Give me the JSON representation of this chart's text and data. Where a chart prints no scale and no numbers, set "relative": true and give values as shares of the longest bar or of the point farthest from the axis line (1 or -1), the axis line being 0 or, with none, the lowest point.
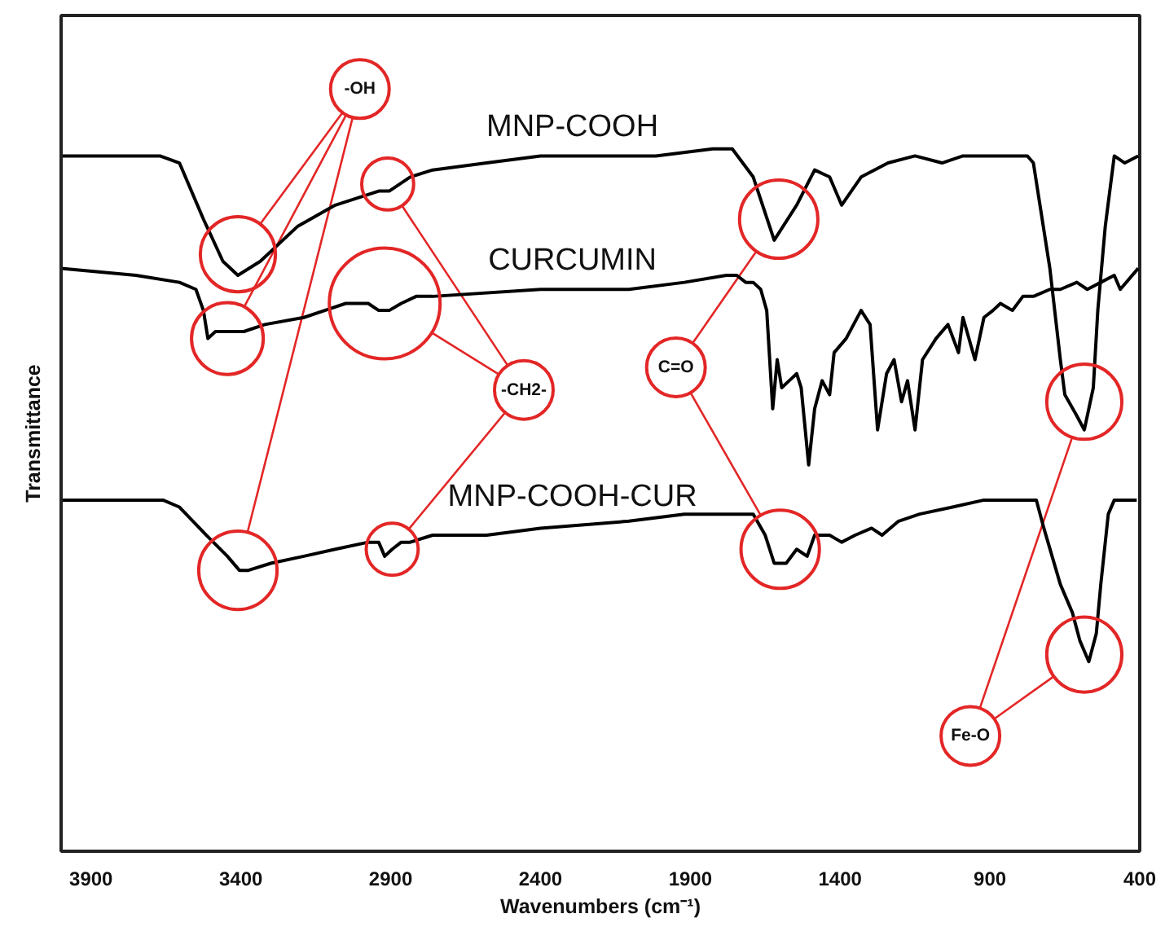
{
  "chart_data": {
    "type": "line",
    "relative": true,
    "xlabel": "Wavenumbers (cm⁻¹)",
    "ylabel": "Transmittance",
    "xlim": [
      4000,
      400
    ],
    "xticks": [
      3900,
      3400,
      2900,
      2400,
      1900,
      1400,
      900,
      400
    ],
    "series": [
      {
        "name": "MNP-COOH",
        "color": "#000000",
        "x": [
          4000,
          3670,
          3605,
          3525,
          3460,
          3410,
          3335,
          3210,
          3085,
          2940,
          2905,
          2835,
          2760,
          2580,
          2400,
          2255,
          2015,
          1825,
          1760,
          1690,
          1620,
          1545,
          1485,
          1435,
          1395,
          1330,
          1240,
          1150,
          1060,
          990,
          775,
          755,
          700,
          665,
          650,
          610,
          585,
          555,
          540,
          515,
          485,
          450,
          405
        ],
        "values": [
          0.99,
          0.99,
          0.98,
          0.9,
          0.84,
          0.82,
          0.84,
          0.89,
          0.92,
          0.94,
          0.94,
          0.96,
          0.97,
          0.98,
          0.99,
          0.99,
          0.99,
          1.0,
          1.0,
          0.96,
          0.87,
          0.92,
          0.97,
          0.96,
          0.92,
          0.96,
          0.98,
          0.99,
          0.98,
          0.99,
          0.99,
          0.98,
          0.83,
          0.7,
          0.65,
          0.62,
          0.6,
          0.66,
          0.77,
          0.89,
          0.99,
          0.98,
          0.99
        ]
      },
      {
        "name": "CURCUMIN",
        "color": "#000000",
        "x": [
          4000,
          3750,
          3605,
          3550,
          3525,
          3510,
          3485,
          3445,
          3390,
          3320,
          3190,
          3120,
          3050,
          2975,
          2940,
          2905,
          2865,
          2815,
          2760,
          2400,
          2105,
          1920,
          1780,
          1745,
          1715,
          1690,
          1665,
          1645,
          1625,
          1610,
          1595,
          1570,
          1545,
          1530,
          1505,
          1485,
          1460,
          1435,
          1420,
          1380,
          1330,
          1300,
          1275,
          1245,
          1220,
          1195,
          1175,
          1150,
          1125,
          1080,
          1040,
          1005,
          990,
          950,
          920,
          890,
          865,
          825,
          790,
          755,
          700,
          665,
          610,
          575,
          530,
          485,
          465,
          405
        ],
        "values": [
          0.83,
          0.82,
          0.81,
          0.8,
          0.77,
          0.73,
          0.74,
          0.74,
          0.74,
          0.75,
          0.76,
          0.77,
          0.78,
          0.78,
          0.77,
          0.77,
          0.78,
          0.79,
          0.79,
          0.8,
          0.8,
          0.81,
          0.82,
          0.82,
          0.81,
          0.81,
          0.8,
          0.77,
          0.63,
          0.7,
          0.66,
          0.67,
          0.68,
          0.66,
          0.55,
          0.63,
          0.67,
          0.65,
          0.71,
          0.73,
          0.77,
          0.75,
          0.6,
          0.68,
          0.7,
          0.64,
          0.67,
          0.6,
          0.7,
          0.73,
          0.75,
          0.71,
          0.76,
          0.7,
          0.76,
          0.77,
          0.78,
          0.77,
          0.79,
          0.79,
          0.8,
          0.8,
          0.81,
          0.8,
          0.81,
          0.82,
          0.8,
          0.83
        ]
      },
      {
        "name": "MNP-COOH-CUR",
        "color": "#000000",
        "x": [
          4000,
          3750,
          3660,
          3605,
          3515,
          3445,
          3405,
          3375,
          3300,
          3190,
          3085,
          2975,
          2940,
          2920,
          2895,
          2865,
          2835,
          2760,
          2580,
          2400,
          2105,
          1920,
          1780,
          1690,
          1650,
          1620,
          1580,
          1545,
          1510,
          1485,
          1435,
          1395,
          1350,
          1295,
          1260,
          1205,
          1135,
          1025,
          920,
          845,
          775,
          745,
          720,
          665,
          625,
          600,
          570,
          545,
          530,
          505,
          485,
          450,
          410
        ],
        "values": [
          0.5,
          0.5,
          0.5,
          0.49,
          0.45,
          0.42,
          0.4,
          0.4,
          0.41,
          0.42,
          0.43,
          0.44,
          0.44,
          0.42,
          0.43,
          0.44,
          0.44,
          0.45,
          0.45,
          0.46,
          0.47,
          0.48,
          0.48,
          0.48,
          0.45,
          0.41,
          0.41,
          0.43,
          0.42,
          0.45,
          0.45,
          0.44,
          0.45,
          0.46,
          0.45,
          0.47,
          0.48,
          0.49,
          0.5,
          0.5,
          0.5,
          0.5,
          0.46,
          0.38,
          0.34,
          0.3,
          0.27,
          0.31,
          0.38,
          0.48,
          0.5,
          0.5,
          0.5
        ]
      },
      {
        "type": "bubble",
        "color": "#e32626",
        "x": [
          3410,
          3445,
          3410
        ],
        "values": [
          0.85,
          0.73,
          0.4
        ],
        "sizes": [
          0.46,
          0.42,
          0.5
        ]
      },
      {
        "type": "bubble",
        "color": "#e32626",
        "x": [
          2910,
          2920,
          2895
        ],
        "values": [
          0.95,
          0.78,
          0.43
        ],
        "sizes": [
          0.22,
          1,
          0.22
        ]
      },
      {
        "type": "bubble",
        "color": "#e32626",
        "x": [
          1605,
          1600
        ],
        "values": [
          0.9,
          0.43
        ],
        "sizes": [
          0.5,
          0.5
        ]
      },
      {
        "type": "bubble",
        "color": "#e32626",
        "x": [
          585,
          585
        ],
        "values": [
          0.64,
          0.28
        ],
        "sizes": [
          0.46,
          0.46
        ]
      }
    ],
    "annotations": [
      "-OH",
      "-CH2-",
      "C=O",
      "Fe-O"
    ]
  }
}
